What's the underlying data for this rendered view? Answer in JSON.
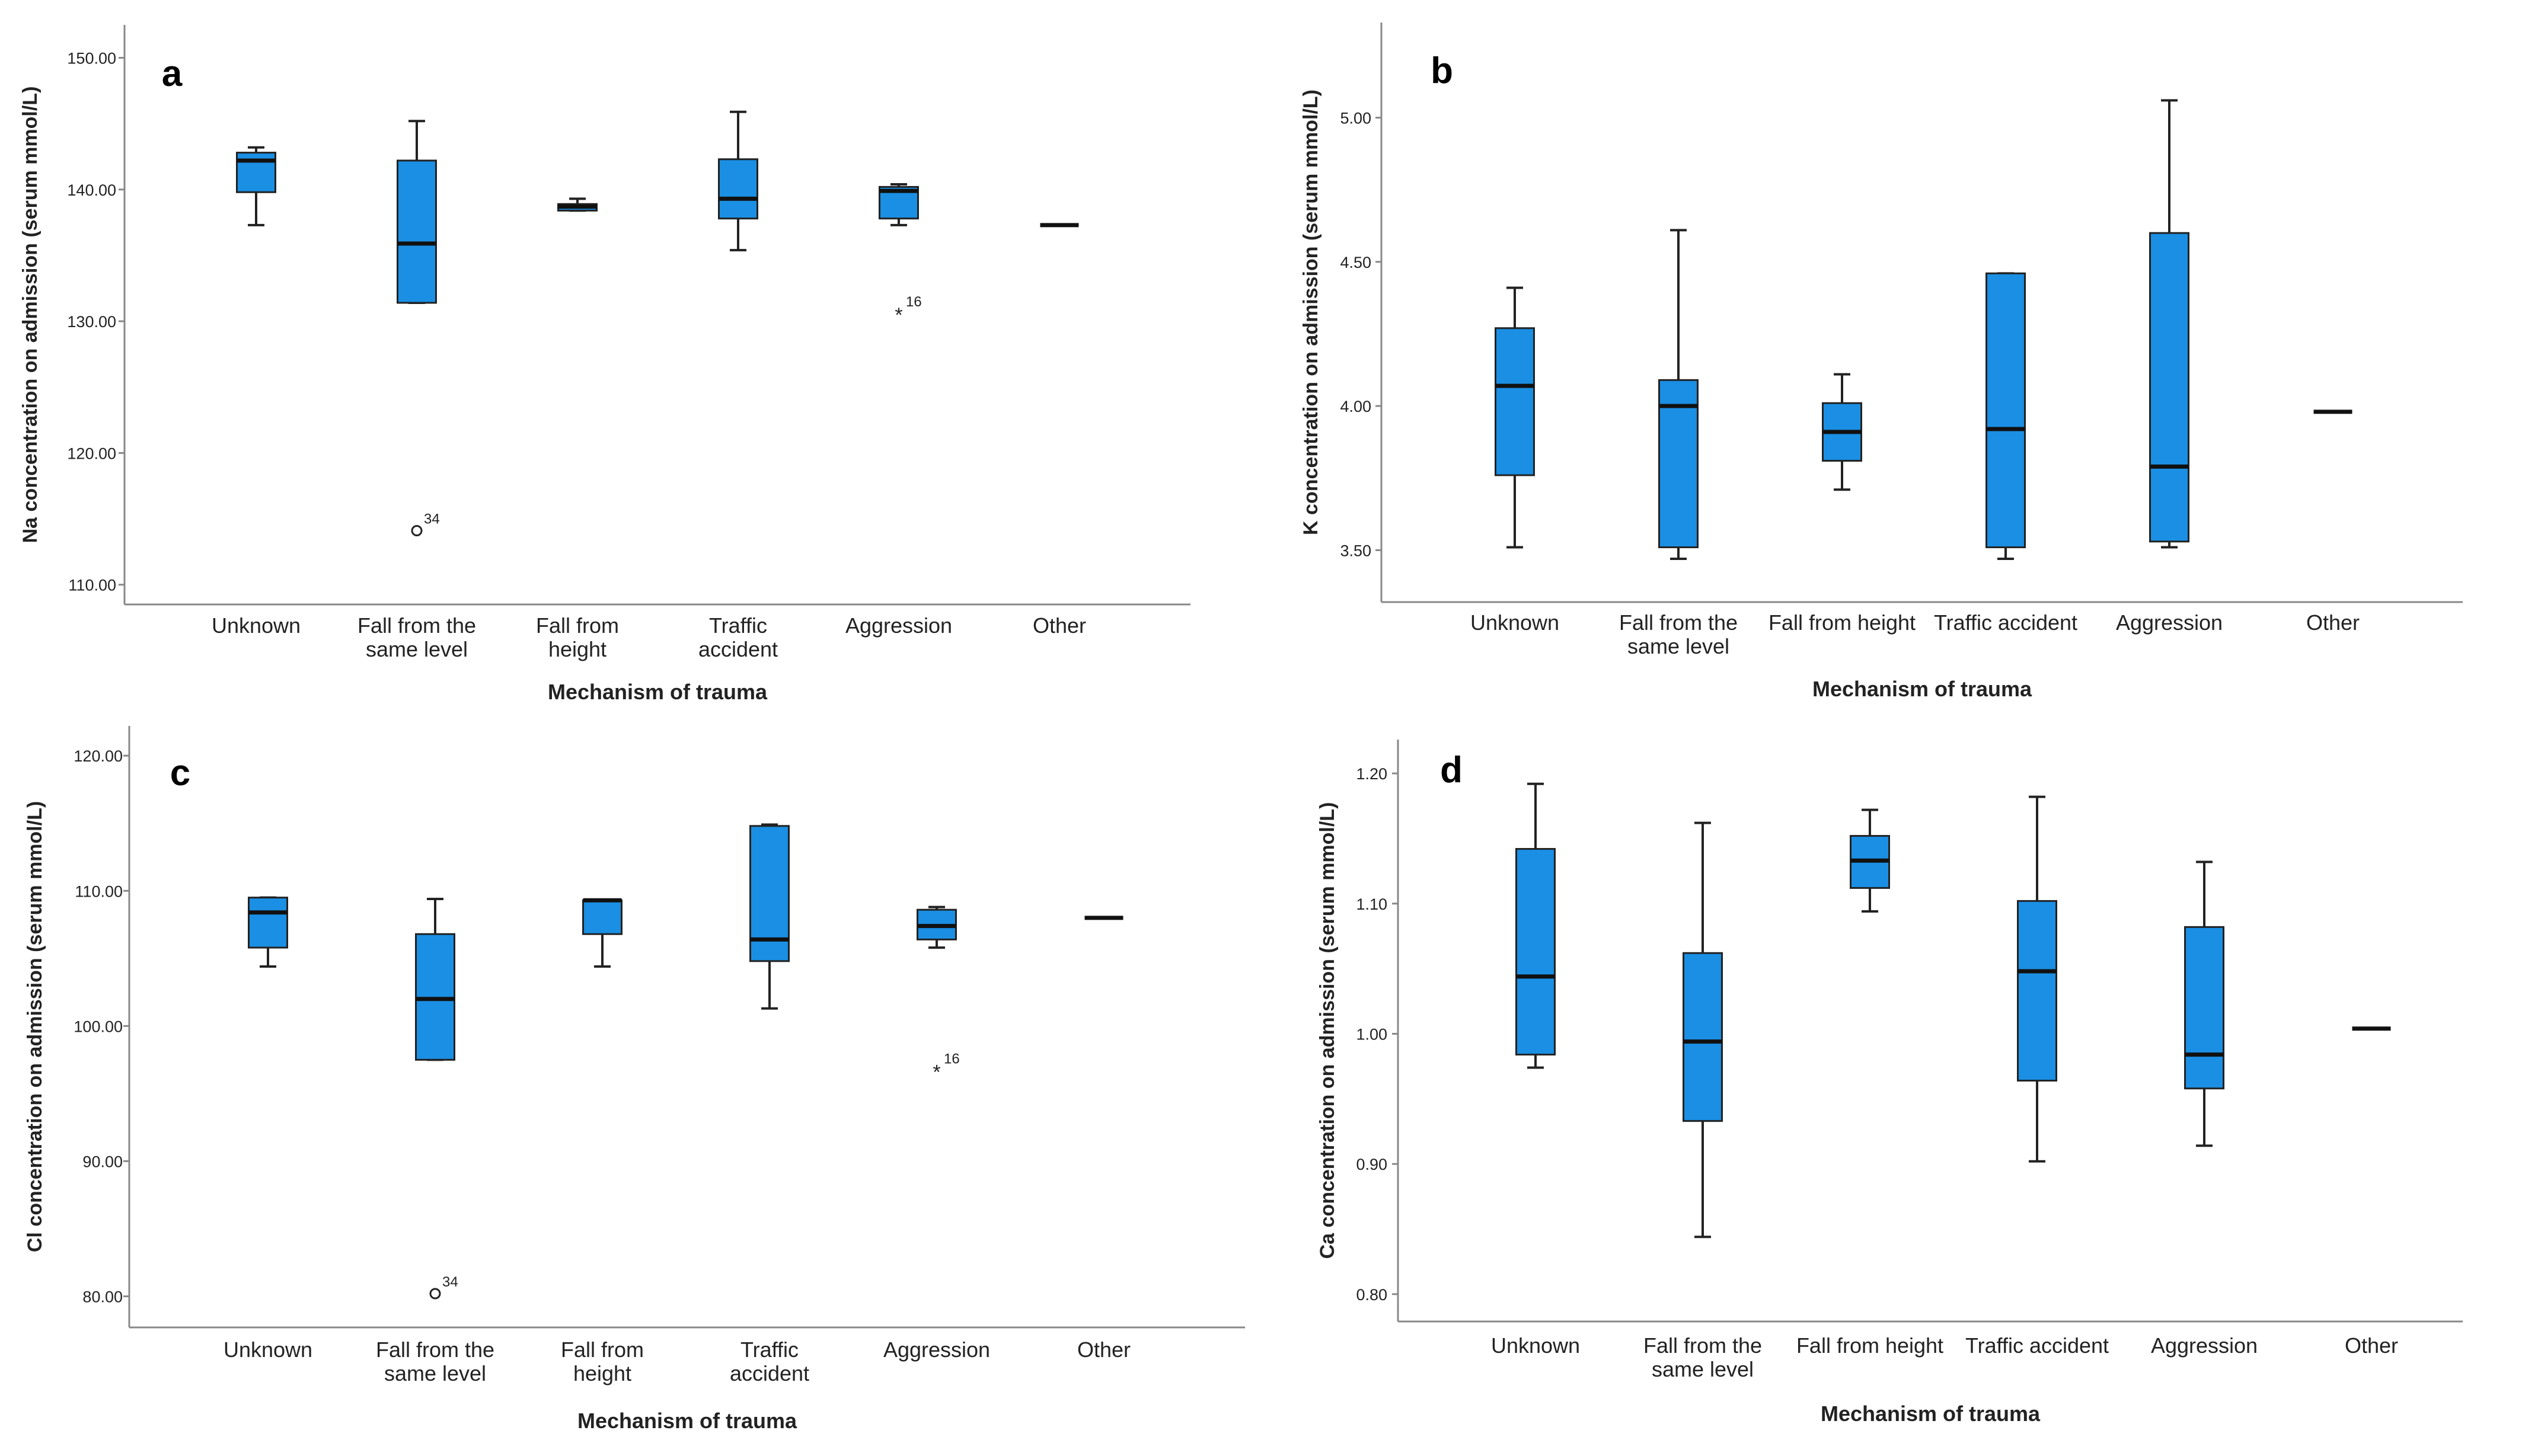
{
  "chart_data": [
    {
      "panel_label": "a",
      "type": "box",
      "xlabel": "Mechanism of trauma",
      "ylabel": "Na concentration on admission (serum mmol/L)",
      "categories": [
        [
          "Unknown"
        ],
        [
          "Fall from the",
          "same level"
        ],
        [
          "Fall from",
          "height"
        ],
        [
          "Traffic",
          "accident"
        ],
        [
          "Aggression"
        ],
        [
          "Other"
        ]
      ],
      "yticks": [
        110,
        120,
        130,
        140,
        150
      ],
      "ytick_labels": [
        "110.00",
        "120.00",
        "130.00",
        "140.00",
        "150.00"
      ],
      "ylim": [
        108.5,
        152.5
      ],
      "boxes": [
        {
          "min": 137.3,
          "q1": 139.8,
          "median": 142.2,
          "q3": 142.8,
          "max": 143.2
        },
        {
          "min": 131.4,
          "q1": 131.4,
          "median": 135.9,
          "q3": 142.2,
          "max": 145.2
        },
        {
          "min": 138.4,
          "q1": 138.4,
          "median": 138.7,
          "q3": 138.9,
          "max": 139.3
        },
        {
          "min": 135.4,
          "q1": 137.8,
          "median": 139.3,
          "q3": 142.3,
          "max": 145.9
        },
        {
          "min": 137.3,
          "q1": 137.8,
          "median": 139.9,
          "q3": 140.2,
          "max": 140.4
        },
        {
          "min": 137.3,
          "q1": 137.3,
          "median": 137.3,
          "q3": 137.3,
          "max": 137.3
        }
      ],
      "outliers": [
        {
          "cat": 1,
          "value": 114.1,
          "marker": "circle",
          "label": "34"
        },
        {
          "cat": 4,
          "value": 130.6,
          "marker": "star",
          "label": "16"
        }
      ]
    },
    {
      "panel_label": "b",
      "type": "box",
      "xlabel": "Mechanism of trauma",
      "ylabel": "K concentration on admission (serum mmol/L)",
      "categories": [
        [
          "Unknown"
        ],
        [
          "Fall from the",
          "same level"
        ],
        [
          "Fall from height"
        ],
        [
          "Traffic accident"
        ],
        [
          "Aggression"
        ],
        [
          "Other"
        ]
      ],
      "yticks": [
        3.5,
        4.0,
        4.5,
        5.0
      ],
      "ytick_labels": [
        "3.50",
        "4.00",
        "4.50",
        "5.00"
      ],
      "ylim": [
        3.32,
        5.33
      ],
      "boxes": [
        {
          "min": 3.51,
          "q1": 3.76,
          "median": 4.07,
          "q3": 4.27,
          "max": 4.41
        },
        {
          "min": 3.47,
          "q1": 3.51,
          "median": 4.0,
          "q3": 4.09,
          "max": 4.61
        },
        {
          "min": 3.71,
          "q1": 3.81,
          "median": 3.91,
          "q3": 4.01,
          "max": 4.11
        },
        {
          "min": 3.47,
          "q1": 3.51,
          "median": 3.92,
          "q3": 4.46,
          "max": 4.46
        },
        {
          "min": 3.51,
          "q1": 3.53,
          "median": 3.79,
          "q3": 4.6,
          "max": 5.06
        },
        {
          "min": 3.98,
          "q1": 3.98,
          "median": 3.98,
          "q3": 3.98,
          "max": 3.98
        }
      ],
      "outliers": []
    },
    {
      "panel_label": "c",
      "type": "box",
      "xlabel": "Mechanism of trauma",
      "ylabel": "Cl concentration on admission (serum mmol/L)",
      "categories": [
        [
          "Unknown"
        ],
        [
          "Fall from the",
          "same level"
        ],
        [
          "Fall from",
          "height"
        ],
        [
          "Traffic",
          "accident"
        ],
        [
          "Aggression"
        ],
        [
          "Other"
        ]
      ],
      "yticks": [
        80,
        90,
        100,
        110,
        120
      ],
      "ytick_labels": [
        "80.00",
        "90.00",
        "100.00",
        "110.00",
        "120.00"
      ],
      "ylim": [
        77.7,
        122.2
      ],
      "boxes": [
        {
          "min": 104.4,
          "q1": 105.8,
          "median": 108.4,
          "q3": 109.5,
          "max": 109.5
        },
        {
          "min": 97.5,
          "q1": 97.5,
          "median": 102.0,
          "q3": 106.8,
          "max": 109.4
        },
        {
          "min": 104.4,
          "q1": 106.8,
          "median": 109.3,
          "q3": 109.3,
          "max": 109.3
        },
        {
          "min": 101.3,
          "q1": 104.8,
          "median": 106.4,
          "q3": 114.8,
          "max": 114.9
        },
        {
          "min": 105.8,
          "q1": 106.4,
          "median": 107.4,
          "q3": 108.6,
          "max": 108.8
        },
        {
          "min": 108.0,
          "q1": 108.0,
          "median": 108.0,
          "q3": 108.0,
          "max": 108.0
        }
      ],
      "outliers": [
        {
          "cat": 1,
          "value": 80.2,
          "marker": "circle",
          "label": "34"
        },
        {
          "cat": 4,
          "value": 96.7,
          "marker": "star",
          "label": "16"
        }
      ]
    },
    {
      "panel_label": "d",
      "type": "box",
      "xlabel": "Mechanism of trauma",
      "ylabel": "Ca concentration on admission (serum mmol/L)",
      "categories": [
        [
          "Unknown"
        ],
        [
          "Fall from the",
          "same level"
        ],
        [
          "Fall from height"
        ],
        [
          "Traffic accident"
        ],
        [
          "Aggression"
        ],
        [
          "Other"
        ]
      ],
      "yticks": [
        0.8,
        0.9,
        1.0,
        1.1,
        1.2
      ],
      "ytick_labels": [
        "0.80",
        "0.90",
        "1.00",
        "1.10",
        "1.20"
      ],
      "ylim": [
        0.779,
        1.226
      ],
      "boxes": [
        {
          "min": 0.974,
          "q1": 0.984,
          "median": 1.044,
          "q3": 1.142,
          "max": 1.192
        },
        {
          "min": 0.844,
          "q1": 0.933,
          "median": 0.994,
          "q3": 1.062,
          "max": 1.162
        },
        {
          "min": 1.094,
          "q1": 1.112,
          "median": 1.133,
          "q3": 1.152,
          "max": 1.172
        },
        {
          "min": 0.902,
          "q1": 0.964,
          "median": 1.048,
          "q3": 1.102,
          "max": 1.182
        },
        {
          "min": 0.914,
          "q1": 0.958,
          "median": 0.984,
          "q3": 1.082,
          "max": 1.132
        },
        {
          "min": 1.004,
          "q1": 1.004,
          "median": 1.004,
          "q3": 1.004,
          "max": 1.004
        }
      ],
      "outliers": []
    }
  ],
  "colors": {
    "box_fill": "#1A8FE3",
    "ink": "#222222",
    "axis": "#888888"
  }
}
